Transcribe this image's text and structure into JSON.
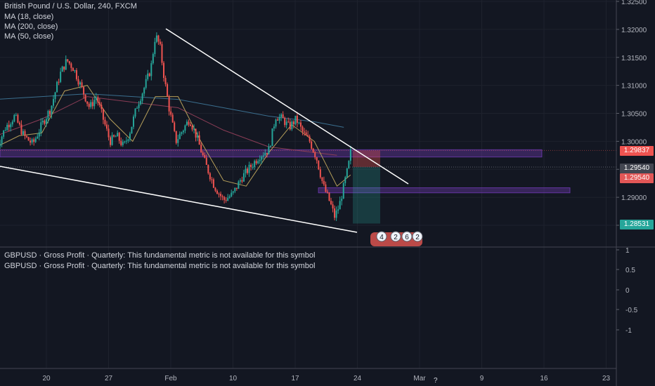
{
  "legend": {
    "symbol_line": "British Pound / U.S. Dollar, 240, FXCM",
    "ma1": "MA (18, close)",
    "ma2": "MA (200, close)",
    "ma3": "MA (50, close)"
  },
  "indicator_pane": {
    "line1": "GBPUSD · Gross Profit · Quarterly: This fundamental metric is not available for this symbol",
    "line2": "GBPUSD · Gross Profit · Quarterly: This fundamental metric is not available for this symbol",
    "y_ticks": [
      "1",
      "0.5",
      "0",
      "-0.5",
      "-1"
    ]
  },
  "price_tags": {
    "current": "1.29837",
    "level_a": "1.29540",
    "level_b": "1.29540",
    "target": "1.28531"
  },
  "event_markers": [
    "4",
    "2",
    "6",
    "2"
  ],
  "question_mark": "?",
  "colors": {
    "background": "#131722",
    "up": "#26a69a",
    "down": "#ef5350",
    "ma18": "#b59e5a",
    "ma200": "#3b6f8f",
    "ma50": "#8a3d56",
    "zone": "#7b3fc4",
    "target_tag": "#26a69a"
  },
  "chart_data": {
    "type": "candlestick",
    "title": "British Pound / U.S. Dollar, 240, FXCM",
    "x_ticks": [
      "20",
      "27",
      "Feb",
      "10",
      "17",
      "24",
      "Mar",
      "9",
      "16",
      "23"
    ],
    "y_ticks": [
      "1.32500",
      "1.32000",
      "1.31500",
      "1.31000",
      "1.30500",
      "1.30000",
      "1.29500",
      "1.29000",
      "1.28500"
    ],
    "ylim": [
      1.2805,
      1.3253
    ],
    "series_ma": [
      "MA (18, close)",
      "MA (200, close)",
      "MA (50, close)"
    ],
    "close_path": [
      [
        0,
        1.2988
      ],
      [
        0.4,
        1.3025
      ],
      [
        0.8,
        1.3045
      ],
      [
        1.2,
        1.301
      ],
      [
        1.6,
        1.2995
      ],
      [
        2.0,
        1.303
      ],
      [
        2.4,
        1.306
      ],
      [
        2.8,
        1.312
      ],
      [
        3.1,
        1.3145
      ],
      [
        3.4,
        1.313
      ],
      [
        3.8,
        1.309
      ],
      [
        4.1,
        1.306
      ],
      [
        4.4,
        1.308
      ],
      [
        4.7,
        1.304
      ],
      [
        5.0,
        1.3
      ],
      [
        5.3,
        1.301
      ],
      [
        5.6,
        1.299
      ],
      [
        5.9,
        1.302
      ],
      [
        6.2,
        1.3065
      ],
      [
        6.5,
        1.3095
      ],
      [
        6.8,
        1.313
      ],
      [
        7.0,
        1.319
      ],
      [
        7.2,
        1.317
      ],
      [
        7.4,
        1.311
      ],
      [
        7.6,
        1.306
      ],
      [
        7.9,
        1.3
      ],
      [
        8.2,
        1.302
      ],
      [
        8.5,
        1.304
      ],
      [
        8.8,
        1.301
      ],
      [
        9.2,
        1.296
      ],
      [
        9.6,
        1.292
      ],
      [
        10.0,
        1.2895
      ],
      [
        10.4,
        1.2905
      ],
      [
        10.8,
        1.2935
      ],
      [
        11.2,
        1.2955
      ],
      [
        11.6,
        1.2975
      ],
      [
        12.0,
        1.2985
      ],
      [
        12.3,
        1.3045
      ],
      [
        12.6,
        1.304
      ],
      [
        12.9,
        1.3025
      ],
      [
        13.2,
        1.304
      ],
      [
        13.5,
        1.3015
      ],
      [
        13.8,
        1.3
      ],
      [
        14.1,
        1.297
      ],
      [
        14.4,
        1.292
      ],
      [
        14.7,
        1.289
      ],
      [
        14.9,
        1.2865
      ],
      [
        15.1,
        1.2885
      ],
      [
        15.3,
        1.292
      ],
      [
        15.5,
        1.2955
      ],
      [
        15.6,
        1.298
      ]
    ],
    "ma18": [
      [
        0,
        1.299
      ],
      [
        1.0,
        1.301
      ],
      [
        2.0,
        1.3015
      ],
      [
        3.0,
        1.309
      ],
      [
        4.0,
        1.31
      ],
      [
        5.0,
        1.304
      ],
      [
        6.0,
        1.3
      ],
      [
        7.0,
        1.308
      ],
      [
        8.0,
        1.308
      ],
      [
        9.0,
        1.3
      ],
      [
        10.0,
        1.293
      ],
      [
        11.0,
        1.292
      ],
      [
        12.0,
        1.298
      ],
      [
        13.0,
        1.303
      ],
      [
        14.0,
        1.3
      ],
      [
        15.0,
        1.292
      ],
      [
        15.6,
        1.294
      ]
    ],
    "ma50": [
      [
        0,
        1.301
      ],
      [
        2.0,
        1.304
      ],
      [
        4.0,
        1.308
      ],
      [
        6.0,
        1.307
      ],
      [
        8.0,
        1.306
      ],
      [
        10.0,
        1.302
      ],
      [
        12.0,
        1.299
      ],
      [
        14.0,
        1.298
      ],
      [
        15.0,
        1.2975
      ]
    ],
    "ma200": [
      [
        0,
        1.3075
      ],
      [
        2.0,
        1.308
      ],
      [
        4.0,
        1.3085
      ],
      [
        6.0,
        1.308
      ],
      [
        8.0,
        1.3075
      ],
      [
        10.0,
        1.306
      ],
      [
        12.0,
        1.3045
      ],
      [
        14.0,
        1.3035
      ],
      [
        15.3,
        1.3025
      ]
    ],
    "trendlines": [
      {
        "from": [
          7.0,
          1.3205
        ],
        "to": [
          18.0,
          1.2955
        ]
      },
      {
        "from": [
          -0.5,
          1.2975
        ],
        "to": [
          15.8,
          1.2847
        ]
      }
    ],
    "zones": [
      {
        "x": [
          0,
          24.8
        ],
        "y": [
          1.2972,
          1.2985
        ]
      },
      {
        "x": [
          4.6,
          26.3
        ],
        "y": [
          1.2908,
          1.2917
        ]
      }
    ],
    "position": {
      "x": [
        15.6,
        17.0
      ],
      "entry": 1.2954,
      "stop": 1.29837,
      "target": 1.28531
    }
  }
}
